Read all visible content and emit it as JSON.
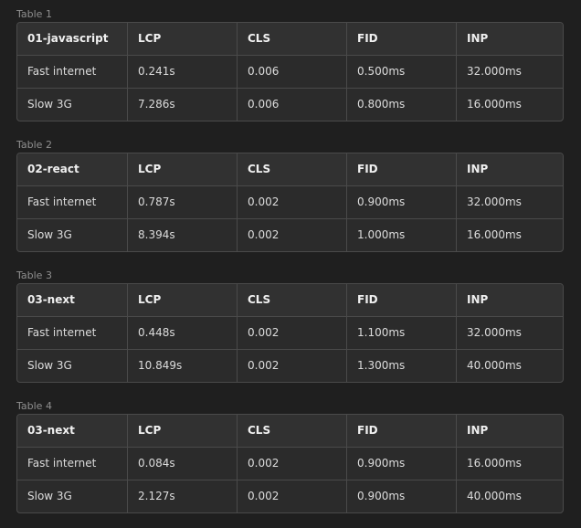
{
  "tables": [
    {
      "caption": "Table 1",
      "headers": [
        "01-javascript",
        "LCP",
        "CLS",
        "FID",
        "INP"
      ],
      "rows": [
        [
          "Fast internet",
          "0.241s",
          "0.006",
          "0.500ms",
          "32.000ms"
        ],
        [
          "Slow 3G",
          "7.286s",
          "0.006",
          "0.800ms",
          "16.000ms"
        ]
      ]
    },
    {
      "caption": "Table 2",
      "headers": [
        "02-react",
        "LCP",
        "CLS",
        "FID",
        "INP"
      ],
      "rows": [
        [
          "Fast internet",
          "0.787s",
          "0.002",
          "0.900ms",
          "32.000ms"
        ],
        [
          "Slow 3G",
          "8.394s",
          "0.002",
          "1.000ms",
          "16.000ms"
        ]
      ]
    },
    {
      "caption": "Table 3",
      "headers": [
        "03-next",
        "LCP",
        "CLS",
        "FID",
        "INP"
      ],
      "rows": [
        [
          "Fast internet",
          "0.448s",
          "0.002",
          "1.100ms",
          "32.000ms"
        ],
        [
          "Slow 3G",
          "10.849s",
          "0.002",
          "1.300ms",
          "40.000ms"
        ]
      ]
    },
    {
      "caption": "Table 4",
      "headers": [
        "03-next",
        "LCP",
        "CLS",
        "FID",
        "INP"
      ],
      "rows": [
        [
          "Fast internet",
          "0.084s",
          "0.002",
          "0.900ms",
          "16.000ms"
        ],
        [
          "Slow 3G",
          "2.127s",
          "0.002",
          "0.900ms",
          "40.000ms"
        ]
      ]
    }
  ]
}
